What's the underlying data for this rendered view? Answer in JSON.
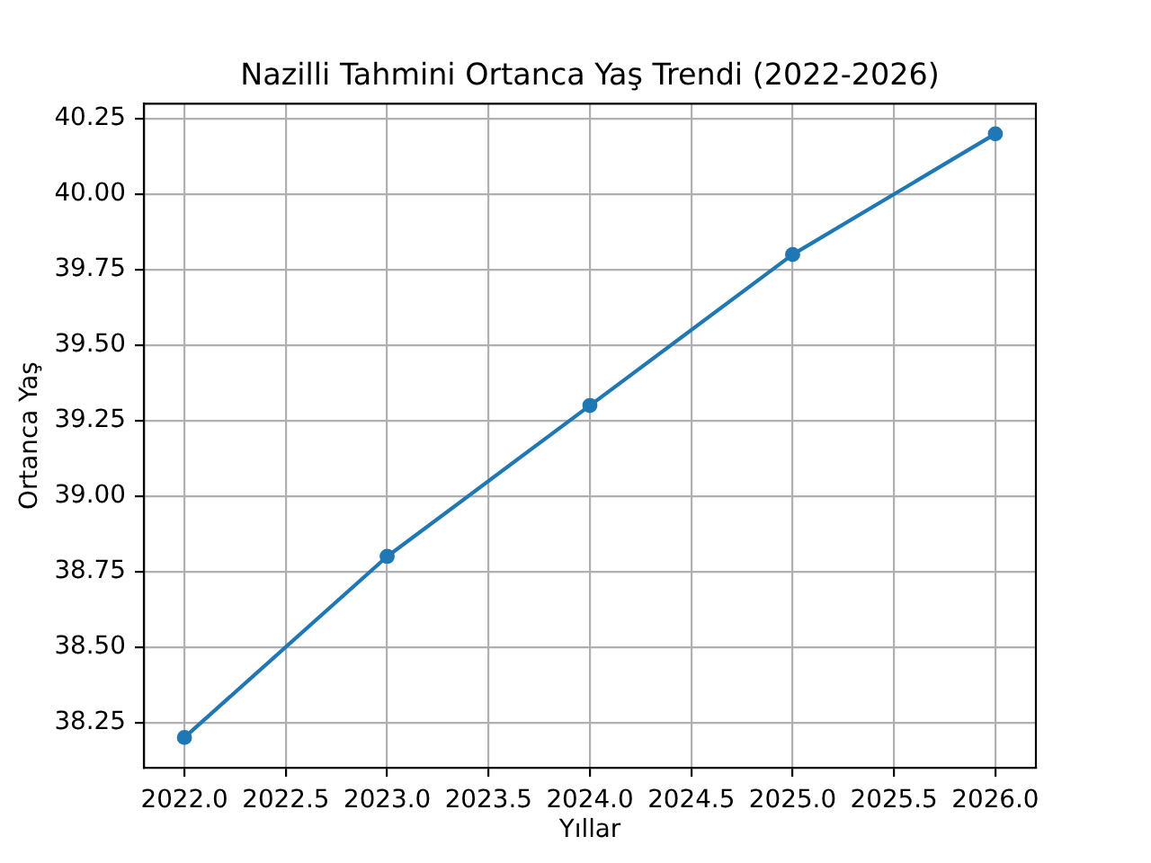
{
  "chart_data": {
    "type": "line",
    "title": "Nazilli Tahmini Ortanca Yaş Trendi (2022-2026)",
    "xlabel": "Yıllar",
    "ylabel": "Ortanca Yaş",
    "x": [
      2022,
      2023,
      2024,
      2025,
      2026
    ],
    "values": [
      38.2,
      38.8,
      39.3,
      39.8,
      40.2
    ],
    "color": "#1f77b4",
    "xlim": [
      2021.8,
      2026.2
    ],
    "ylim": [
      38.1,
      40.3
    ],
    "xticks": [
      {
        "value": 2022,
        "label": "2022.0"
      },
      {
        "value": 2022.5,
        "label": "2022.5"
      },
      {
        "value": 2023,
        "label": "2023.0"
      },
      {
        "value": 2023.5,
        "label": "2023.5"
      },
      {
        "value": 2024,
        "label": "2024.0"
      },
      {
        "value": 2024.5,
        "label": "2024.5"
      },
      {
        "value": 2025,
        "label": "2025.0"
      },
      {
        "value": 2025.5,
        "label": "2025.5"
      },
      {
        "value": 2026,
        "label": "2026.0"
      }
    ],
    "yticks": [
      {
        "value": 38.25,
        "label": "38.25"
      },
      {
        "value": 38.5,
        "label": "38.50"
      },
      {
        "value": 38.75,
        "label": "38.75"
      },
      {
        "value": 39,
        "label": "39.00"
      },
      {
        "value": 39.25,
        "label": "39.25"
      },
      {
        "value": 39.5,
        "label": "39.50"
      },
      {
        "value": 39.75,
        "label": "39.75"
      },
      {
        "value": 40,
        "label": "40.00"
      },
      {
        "value": 40.25,
        "label": "40.25"
      }
    ],
    "grid": true,
    "marker": "circle",
    "line_style": "solid"
  }
}
